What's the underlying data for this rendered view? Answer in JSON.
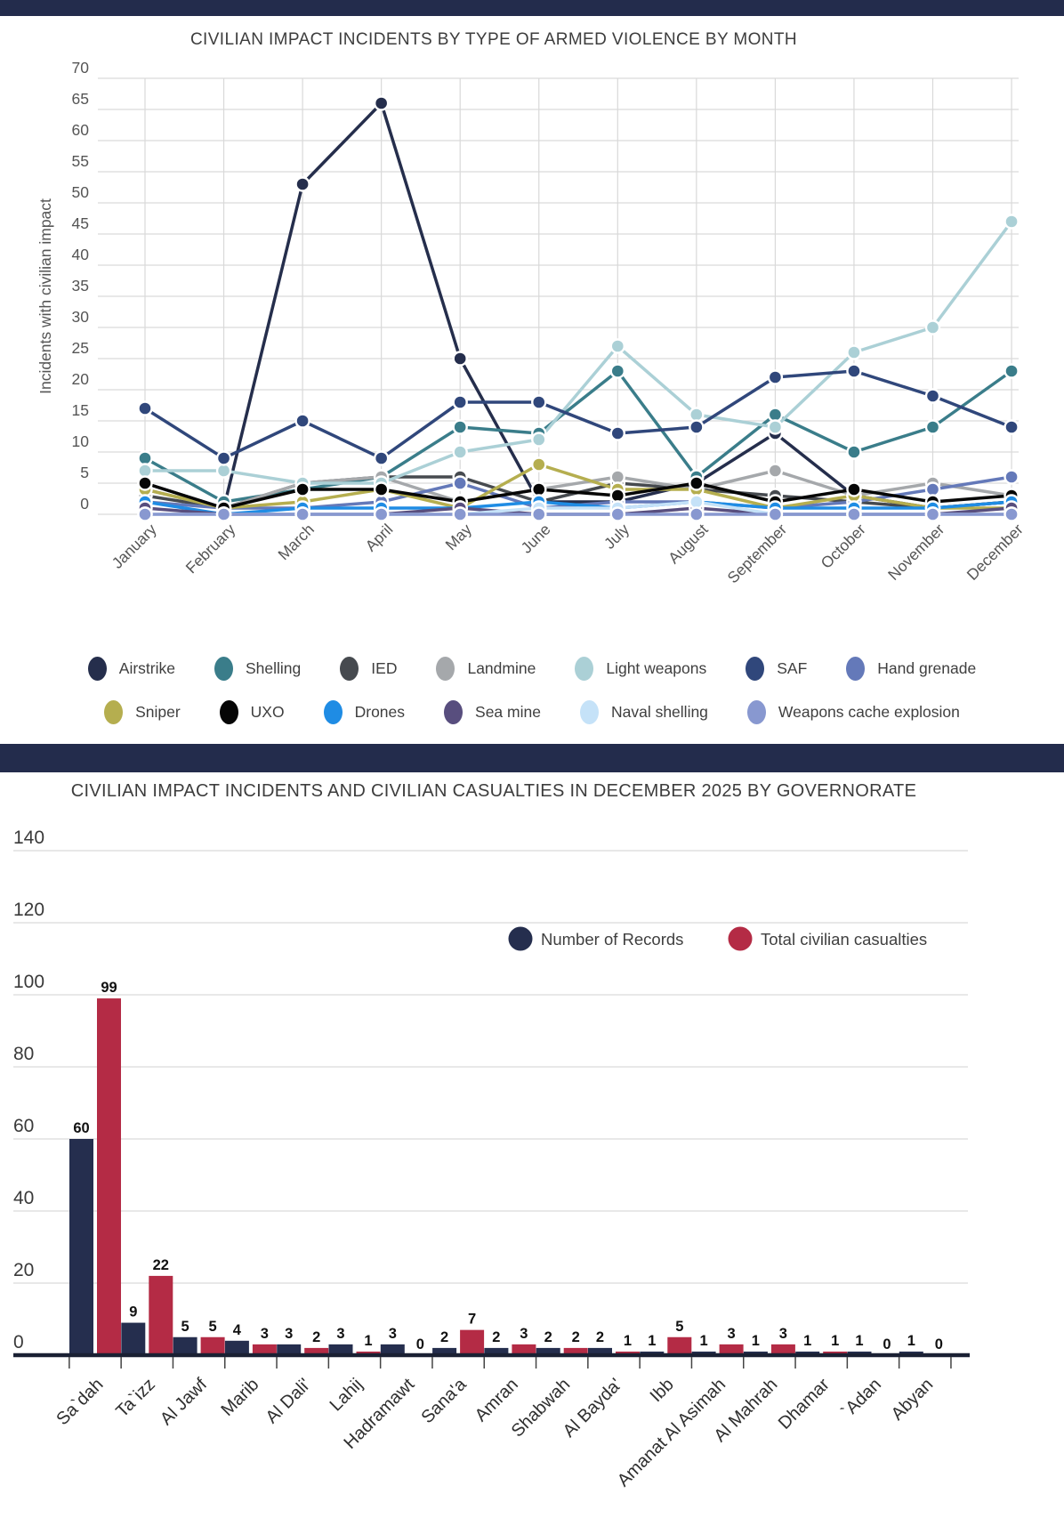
{
  "theme": {
    "band_color": "#232c4c",
    "grid_color": "#d9d9d9",
    "axis_line_color": "#1a2033",
    "tick_label_color": "#555555",
    "title_color": "#3d3d3d"
  },
  "chart_data": [
    {
      "type": "line",
      "title": "CIVILIAN IMPACT INCIDENTS BY TYPE OF ARMED VIOLENCE BY MONTH",
      "xlabel": "",
      "ylabel": "Incidents with civilian impact",
      "ylim": [
        0,
        70
      ],
      "y_tick_step": 5,
      "grid": true,
      "legend_position": "bottom",
      "categories": [
        "January",
        "February",
        "March",
        "April",
        "May",
        "June",
        "July",
        "August",
        "September",
        "October",
        "November",
        "December"
      ],
      "series": [
        {
          "name": "Airstrike",
          "color": "#252e4c",
          "values": [
            5,
            1,
            53,
            66,
            25,
            2,
            2,
            5,
            13,
            3,
            1,
            2
          ]
        },
        {
          "name": "Shelling",
          "color": "#3a7d8a",
          "values": [
            9,
            2,
            4,
            6,
            14,
            13,
            23,
            6,
            16,
            10,
            14,
            23
          ]
        },
        {
          "name": "IED",
          "color": "#464a4f",
          "values": [
            3,
            1,
            5,
            6,
            6,
            2,
            5,
            4,
            3,
            2,
            1,
            2
          ]
        },
        {
          "name": "Landmine",
          "color": "#a5a8ab",
          "values": [
            4,
            1,
            5,
            6,
            2,
            4,
            6,
            4,
            7,
            3,
            5,
            3
          ]
        },
        {
          "name": "Light weapons",
          "color": "#abd0d6",
          "values": [
            7,
            7,
            5,
            5,
            10,
            12,
            27,
            16,
            14,
            26,
            30,
            47
          ]
        },
        {
          "name": "SAF",
          "color": "#30477b",
          "values": [
            17,
            9,
            15,
            9,
            18,
            18,
            13,
            14,
            22,
            23,
            19,
            14
          ]
        },
        {
          "name": "Hand grenade",
          "color": "#6479b9",
          "values": [
            2,
            1,
            1,
            2,
            5,
            1,
            2,
            2,
            1,
            2,
            4,
            6
          ]
        },
        {
          "name": "Sniper",
          "color": "#b5ae4f",
          "values": [
            4,
            1,
            2,
            4,
            1,
            8,
            4,
            4,
            1,
            3,
            1,
            1
          ]
        },
        {
          "name": "UXO",
          "color": "#060606",
          "values": [
            5,
            1,
            4,
            4,
            2,
            4,
            3,
            5,
            2,
            4,
            2,
            3
          ]
        },
        {
          "name": "Drones",
          "color": "#1f8ce4",
          "values": [
            2,
            0,
            1,
            1,
            1,
            2,
            1,
            2,
            1,
            1,
            1,
            2
          ]
        },
        {
          "name": "Sea mine",
          "color": "#584e7e",
          "values": [
            1,
            0,
            0,
            0,
            1,
            0,
            0,
            1,
            0,
            0,
            0,
            1
          ]
        },
        {
          "name": "Naval shelling",
          "color": "#c5e2f8",
          "values": [
            0,
            0,
            0,
            0,
            0,
            1,
            1,
            2,
            0,
            0,
            0,
            0
          ]
        },
        {
          "name": "Weapons cache explosion",
          "color": "#8898d0",
          "values": [
            0,
            0,
            0,
            0,
            0,
            0,
            0,
            0,
            0,
            0,
            0,
            0
          ]
        }
      ],
      "legend_rows": [
        7,
        6
      ]
    },
    {
      "type": "bar",
      "title": "CIVILIAN IMPACT INCIDENTS AND CIVILIAN CASUALTIES IN DECEMBER 2025 BY GOVERNORATE",
      "xlabel": "",
      "ylabel": "",
      "ylim": [
        0,
        140
      ],
      "y_tick_step": 20,
      "grid": true,
      "bar_value_labels": true,
      "legend_position": "inside-top-right",
      "categories": [
        "Sa`dah",
        "Ta`izz",
        "Al Jawf",
        "Marib",
        "Al Dali'",
        "Lahij",
        "Hadramawt",
        "Sana'a",
        "Amran",
        "Shabwah",
        "Al Bayda'",
        "Ibb",
        "Amanat Al Asimah",
        "Al Mahrah",
        "Dhamar",
        "`Adan",
        "Abyan"
      ],
      "series": [
        {
          "name": "Number of Records",
          "color": "#252e4e",
          "values": [
            60,
            9,
            5,
            4,
            3,
            3,
            3,
            2,
            2,
            2,
            2,
            1,
            1,
            1,
            1,
            1,
            1
          ]
        },
        {
          "name": "Total civilian casualties",
          "color": "#b42b45",
          "values": [
            99,
            22,
            5,
            3,
            2,
            1,
            0,
            7,
            3,
            2,
            1,
            5,
            3,
            3,
            1,
            0,
            0
          ]
        }
      ]
    }
  ]
}
